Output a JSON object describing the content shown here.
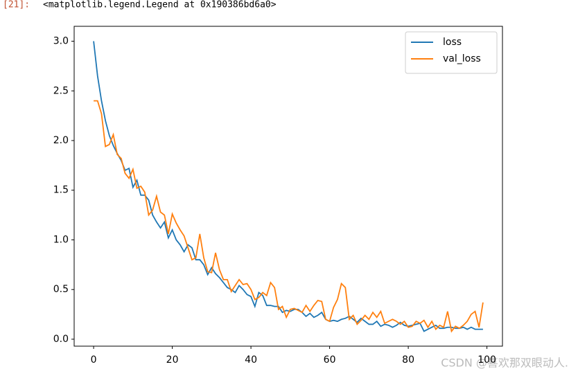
{
  "cell": {
    "prompt": "[21]:",
    "output": "<matplotlib.legend.Legend at 0x190386bd6a0>"
  },
  "watermark": "CSDN @喜欢那双眼动人.",
  "chart_data": {
    "type": "line",
    "x": [
      0,
      1,
      2,
      3,
      4,
      5,
      6,
      7,
      8,
      9,
      10,
      11,
      12,
      13,
      14,
      15,
      16,
      17,
      18,
      19,
      20,
      21,
      22,
      23,
      24,
      25,
      26,
      27,
      28,
      29,
      30,
      31,
      32,
      33,
      34,
      35,
      36,
      37,
      38,
      39,
      40,
      41,
      42,
      43,
      44,
      45,
      46,
      47,
      48,
      49,
      50,
      51,
      52,
      53,
      54,
      55,
      56,
      57,
      58,
      59,
      60,
      61,
      62,
      63,
      64,
      65,
      66,
      67,
      68,
      69,
      70,
      71,
      72,
      73,
      74,
      75,
      76,
      77,
      78,
      79,
      80,
      81,
      82,
      83,
      84,
      85,
      86,
      87,
      88,
      89,
      90,
      91,
      92,
      93,
      94,
      95,
      96,
      97,
      98,
      99
    ],
    "series": [
      {
        "name": "loss",
        "color": "#1f77b4",
        "values": [
          3.0,
          2.65,
          2.4,
          2.2,
          2.05,
          1.95,
          1.87,
          1.8,
          1.7,
          1.72,
          1.53,
          1.6,
          1.45,
          1.45,
          1.4,
          1.25,
          1.18,
          1.12,
          1.18,
          1.02,
          1.1,
          1.0,
          0.95,
          0.88,
          0.95,
          0.92,
          0.8,
          0.8,
          0.75,
          0.65,
          0.72,
          0.66,
          0.62,
          0.57,
          0.52,
          0.5,
          0.47,
          0.54,
          0.5,
          0.45,
          0.43,
          0.33,
          0.47,
          0.44,
          0.34,
          0.34,
          0.33,
          0.33,
          0.27,
          0.29,
          0.28,
          0.3,
          0.3,
          0.27,
          0.23,
          0.26,
          0.22,
          0.24,
          0.27,
          0.2,
          0.18,
          0.19,
          0.18,
          0.2,
          0.21,
          0.23,
          0.2,
          0.17,
          0.21,
          0.18,
          0.15,
          0.15,
          0.18,
          0.13,
          0.15,
          0.14,
          0.12,
          0.14,
          0.17,
          0.14,
          0.13,
          0.14,
          0.15,
          0.16,
          0.08,
          0.1,
          0.12,
          0.14,
          0.11,
          0.11,
          0.12,
          0.12,
          0.11,
          0.11,
          0.12,
          0.1,
          0.12,
          0.1,
          0.1,
          0.1
        ]
      },
      {
        "name": "val_loss",
        "color": "#ff7f0e",
        "values": [
          2.4,
          2.4,
          2.27,
          1.94,
          1.96,
          2.06,
          1.86,
          1.82,
          1.67,
          1.62,
          1.71,
          1.52,
          1.54,
          1.48,
          1.25,
          1.3,
          1.44,
          1.28,
          1.25,
          1.06,
          1.26,
          1.17,
          1.1,
          1.04,
          0.92,
          0.8,
          0.82,
          1.06,
          0.82,
          0.68,
          0.67,
          0.87,
          0.7,
          0.6,
          0.6,
          0.48,
          0.54,
          0.6,
          0.55,
          0.56,
          0.5,
          0.4,
          0.42,
          0.47,
          0.44,
          0.57,
          0.52,
          0.3,
          0.33,
          0.22,
          0.3,
          0.31,
          0.29,
          0.27,
          0.34,
          0.28,
          0.34,
          0.39,
          0.38,
          0.2,
          0.18,
          0.32,
          0.4,
          0.56,
          0.52,
          0.2,
          0.24,
          0.15,
          0.19,
          0.24,
          0.2,
          0.27,
          0.22,
          0.28,
          0.16,
          0.18,
          0.2,
          0.18,
          0.15,
          0.18,
          0.12,
          0.13,
          0.18,
          0.16,
          0.19,
          0.12,
          0.18,
          0.1,
          0.14,
          0.12,
          0.28,
          0.08,
          0.13,
          0.11,
          0.14,
          0.18,
          0.25,
          0.28,
          0.12,
          0.37
        ]
      }
    ],
    "xlim": [
      -4.95,
      103.95
    ],
    "ylim": [
      -0.07,
      3.15
    ],
    "xticks": [
      0,
      20,
      40,
      60,
      80,
      100
    ],
    "yticks": [
      {
        "value": 0,
        "label": "0.0"
      },
      {
        "value": 0.5,
        "label": "0.5"
      },
      {
        "value": 1,
        "label": "1.0"
      },
      {
        "value": 1.5,
        "label": "1.5"
      },
      {
        "value": 2,
        "label": "2.0"
      },
      {
        "value": 2.5,
        "label": "2.5"
      },
      {
        "value": 3,
        "label": "3.0"
      }
    ],
    "legend": "upper right"
  }
}
